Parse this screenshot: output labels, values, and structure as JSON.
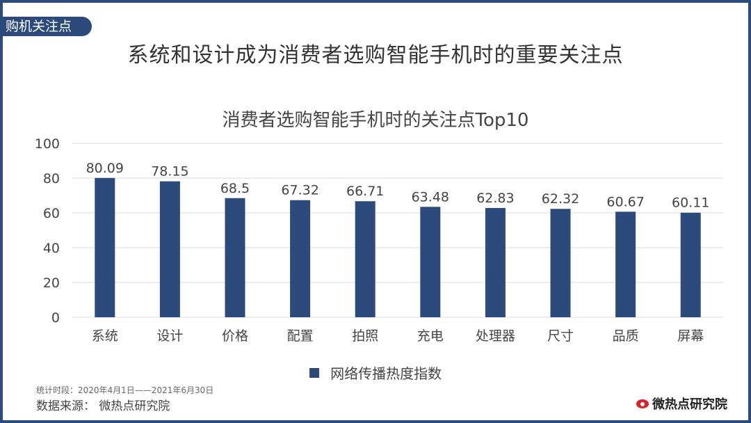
{
  "header": {
    "tag": "购机关注点",
    "title": "系统和设计成为消费者选购智能手机时的重要关注点"
  },
  "footer": {
    "period": "统计时段：2020年4月1日——2021年6月30日",
    "source": "数据来源：  微热点研究院",
    "brand": "微热点研究院",
    "brand_icon": "eye-logo-icon"
  },
  "colors": {
    "bar": "#2d4a7d",
    "grid": "#d9d9d9",
    "frame": "#2d4a7d",
    "brand_icon": "#d8232a"
  },
  "chart_data": {
    "type": "bar",
    "title": "消费者选购智能手机时的关注点Top10",
    "categories": [
      "系统",
      "设计",
      "价格",
      "配置",
      "拍照",
      "充电",
      "处理器",
      "尺寸",
      "品质",
      "屏幕"
    ],
    "series": [
      {
        "name": "网络传播热度指数",
        "values": [
          80.09,
          78.15,
          68.5,
          67.32,
          66.71,
          63.48,
          62.83,
          62.32,
          60.67,
          60.11
        ],
        "data_labels": [
          "80.09",
          "78.15",
          "68.5",
          "67.32",
          "66.71",
          "63.48",
          "62.83",
          "62.32",
          "60.67",
          "60.11"
        ]
      }
    ],
    "yticks": [
      "0",
      "20",
      "40",
      "60",
      "80",
      "100"
    ],
    "ylim": [
      0,
      100
    ],
    "grid": true,
    "legend_position": "bottom"
  }
}
